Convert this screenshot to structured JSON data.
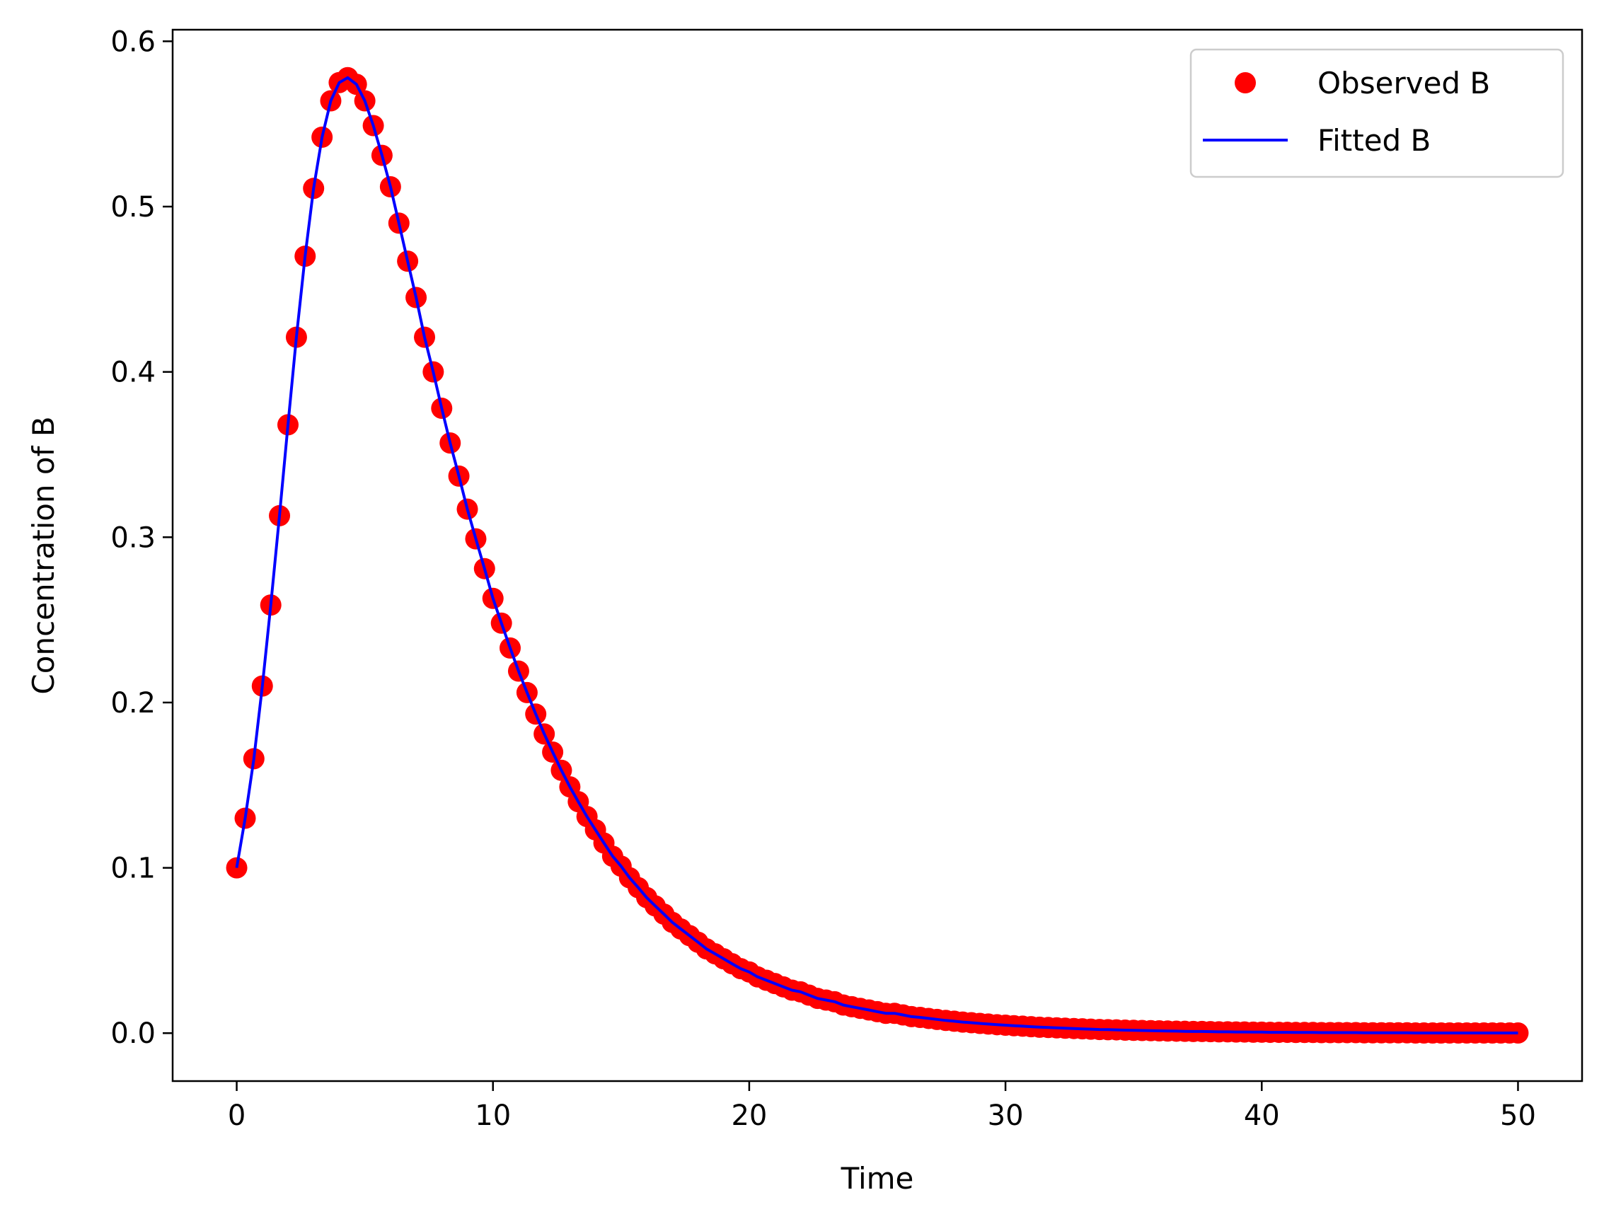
{
  "chart_data": {
    "type": "scatter",
    "title": "",
    "xlabel": "Time",
    "ylabel": "Concentration of B",
    "xlim": [
      -2.5,
      52.5
    ],
    "ylim": [
      -0.029,
      0.607
    ],
    "xticks": [
      0,
      10,
      20,
      30,
      40,
      50
    ],
    "xtick_labels": [
      "0",
      "10",
      "20",
      "30",
      "40",
      "50"
    ],
    "yticks": [
      0.0,
      0.1,
      0.2,
      0.3,
      0.4,
      0.5,
      0.6
    ],
    "ytick_labels": [
      "0.0",
      "0.1",
      "0.2",
      "0.3",
      "0.4",
      "0.5",
      "0.6"
    ],
    "grid": false,
    "legend_position": "top-right",
    "series": [
      {
        "name": "Observed B",
        "kind": "markers",
        "color": "#ff0000",
        "x": [
          0.0,
          0.33,
          0.67,
          1.0,
          1.33,
          1.67,
          2.0,
          2.33,
          2.67,
          3.0,
          3.33,
          3.67,
          4.0,
          4.33,
          4.67,
          5.0,
          5.33,
          5.67,
          6.0,
          6.33,
          6.67,
          7.0,
          7.33,
          7.67,
          8.0,
          8.33,
          8.67,
          9.0,
          9.33,
          9.67,
          10.0,
          10.33,
          10.67,
          11.0,
          11.33,
          11.67,
          12.0,
          12.33,
          12.67,
          13.0,
          13.33,
          13.67,
          14.0,
          14.33,
          14.67,
          15.0,
          15.33,
          15.67,
          16.0,
          16.33,
          16.67,
          17.0,
          17.33,
          17.67,
          18.0,
          18.33,
          18.67,
          19.0,
          19.33,
          19.67,
          20.0,
          20.33,
          20.67,
          21.0,
          21.33,
          21.67,
          22.0,
          22.33,
          22.67,
          23.0,
          23.33,
          23.67,
          24.0,
          24.33,
          24.67,
          25.0,
          25.33,
          25.67,
          26.0,
          26.33,
          26.67,
          27.0,
          27.33,
          27.67,
          28.0,
          28.33,
          28.67,
          29.0,
          29.33,
          29.67,
          30.0,
          30.33,
          30.67,
          31.0,
          31.33,
          31.67,
          32.0,
          32.33,
          32.67,
          33.0,
          33.33,
          33.67,
          34.0,
          34.33,
          34.67,
          35.0,
          35.33,
          35.67,
          36.0,
          36.33,
          36.67,
          37.0,
          37.33,
          37.67,
          38.0,
          38.33,
          38.67,
          39.0,
          39.33,
          39.67,
          40.0,
          40.33,
          40.67,
          41.0,
          41.33,
          41.67,
          42.0,
          42.33,
          42.67,
          43.0,
          43.33,
          43.67,
          44.0,
          44.33,
          44.67,
          45.0,
          45.33,
          45.67,
          46.0,
          46.33,
          46.67,
          47.0,
          47.33,
          47.67,
          48.0,
          48.33,
          48.67,
          49.0,
          49.33,
          49.67,
          50.0
        ],
        "y": [
          0.1,
          0.13,
          0.166,
          0.21,
          0.259,
          0.313,
          0.368,
          0.421,
          0.47,
          0.511,
          0.542,
          0.564,
          0.575,
          0.578,
          0.574,
          0.564,
          0.549,
          0.531,
          0.512,
          0.49,
          0.467,
          0.445,
          0.421,
          0.4,
          0.378,
          0.357,
          0.337,
          0.317,
          0.299,
          0.281,
          0.263,
          0.248,
          0.233,
          0.219,
          0.206,
          0.193,
          0.181,
          0.17,
          0.159,
          0.149,
          0.14,
          0.131,
          0.123,
          0.115,
          0.107,
          0.101,
          0.094,
          0.088,
          0.082,
          0.077,
          0.072,
          0.067,
          0.063,
          0.059,
          0.055,
          0.051,
          0.048,
          0.045,
          0.042,
          0.039,
          0.037,
          0.034,
          0.032,
          0.03,
          0.028,
          0.026,
          0.025,
          0.023,
          0.021,
          0.02,
          0.019,
          0.017,
          0.016,
          0.015,
          0.014,
          0.013,
          0.012,
          0.012,
          0.011,
          0.01,
          0.0095,
          0.0089,
          0.0083,
          0.0077,
          0.0072,
          0.0067,
          0.0063,
          0.0059,
          0.0055,
          0.0051,
          0.0048,
          0.0045,
          0.0042,
          0.0039,
          0.0036,
          0.0034,
          0.0032,
          0.003,
          0.0028,
          0.0026,
          0.0024,
          0.0022,
          0.0021,
          0.002,
          0.0018,
          0.0017,
          0.0016,
          0.0015,
          0.0014,
          0.0013,
          0.0012,
          0.0011,
          0.001,
          0.001,
          0.0009,
          0.0008,
          0.0008,
          0.0007,
          0.0007,
          0.0006,
          0.0006,
          0.0005,
          0.0005,
          0.0005,
          0.0004,
          0.0004,
          0.0004,
          0.0003,
          0.0003,
          0.0003,
          0.0003,
          0.0003,
          0.0002,
          0.0002,
          0.0002,
          0.0002,
          0.0002,
          0.0002,
          0.0001,
          0.0001,
          0.0001,
          0.0001,
          0.0001,
          0.0001,
          0.0001,
          0.0001,
          0.0001,
          0.0001,
          0.0001,
          0.0001,
          0.0001
        ]
      },
      {
        "name": "Fitted B",
        "kind": "line",
        "color": "#0000ff",
        "x": [
          0.0,
          0.33,
          0.67,
          1.0,
          1.33,
          1.67,
          2.0,
          2.33,
          2.67,
          3.0,
          3.33,
          3.67,
          4.0,
          4.33,
          4.67,
          5.0,
          5.33,
          5.67,
          6.0,
          6.33,
          6.67,
          7.0,
          7.33,
          7.67,
          8.0,
          8.33,
          8.67,
          9.0,
          9.33,
          9.67,
          10.0,
          10.33,
          10.67,
          11.0,
          11.33,
          11.67,
          12.0,
          12.33,
          12.67,
          13.0,
          13.33,
          13.67,
          14.0,
          14.33,
          14.67,
          15.0,
          15.33,
          15.67,
          16.0,
          16.33,
          16.67,
          17.0,
          17.33,
          17.67,
          18.0,
          18.33,
          18.67,
          19.0,
          19.33,
          19.67,
          20.0,
          20.33,
          20.67,
          21.0,
          21.33,
          21.67,
          22.0,
          22.33,
          22.67,
          23.0,
          23.33,
          23.67,
          24.0,
          24.33,
          24.67,
          25.0,
          25.33,
          25.67,
          26.0,
          26.33,
          26.67,
          27.0,
          27.33,
          27.67,
          28.0,
          28.33,
          28.67,
          29.0,
          29.33,
          29.67,
          30.0,
          30.33,
          30.67,
          31.0,
          31.33,
          31.67,
          32.0,
          32.33,
          32.67,
          33.0,
          33.33,
          33.67,
          34.0,
          34.33,
          34.67,
          35.0,
          35.33,
          35.67,
          36.0,
          36.33,
          36.67,
          37.0,
          37.33,
          37.67,
          38.0,
          38.33,
          38.67,
          39.0,
          39.33,
          39.67,
          40.0,
          40.33,
          40.67,
          41.0,
          41.33,
          41.67,
          42.0,
          42.33,
          42.67,
          43.0,
          43.33,
          43.67,
          44.0,
          44.33,
          44.67,
          45.0,
          45.33,
          45.67,
          46.0,
          46.33,
          46.67,
          47.0,
          47.33,
          47.67,
          48.0,
          48.33,
          48.67,
          49.0,
          49.33,
          49.67,
          50.0
        ],
        "y": [
          0.1,
          0.13,
          0.166,
          0.21,
          0.259,
          0.313,
          0.368,
          0.421,
          0.47,
          0.511,
          0.542,
          0.564,
          0.575,
          0.578,
          0.574,
          0.564,
          0.549,
          0.531,
          0.512,
          0.49,
          0.467,
          0.445,
          0.421,
          0.4,
          0.378,
          0.357,
          0.337,
          0.317,
          0.299,
          0.281,
          0.263,
          0.248,
          0.233,
          0.219,
          0.206,
          0.193,
          0.181,
          0.17,
          0.159,
          0.149,
          0.14,
          0.131,
          0.123,
          0.115,
          0.107,
          0.101,
          0.094,
          0.088,
          0.082,
          0.077,
          0.072,
          0.067,
          0.063,
          0.059,
          0.055,
          0.051,
          0.048,
          0.045,
          0.042,
          0.039,
          0.037,
          0.034,
          0.032,
          0.03,
          0.028,
          0.026,
          0.025,
          0.023,
          0.021,
          0.02,
          0.019,
          0.017,
          0.016,
          0.015,
          0.014,
          0.013,
          0.012,
          0.012,
          0.011,
          0.01,
          0.0095,
          0.0089,
          0.0083,
          0.0077,
          0.0072,
          0.0067,
          0.0063,
          0.0059,
          0.0055,
          0.0051,
          0.0048,
          0.0045,
          0.0042,
          0.0039,
          0.0036,
          0.0034,
          0.0032,
          0.003,
          0.0028,
          0.0026,
          0.0024,
          0.0022,
          0.0021,
          0.002,
          0.0018,
          0.0017,
          0.0016,
          0.0015,
          0.0014,
          0.0013,
          0.0012,
          0.0011,
          0.001,
          0.001,
          0.0009,
          0.0008,
          0.0008,
          0.0007,
          0.0007,
          0.0006,
          0.0006,
          0.0005,
          0.0005,
          0.0005,
          0.0004,
          0.0004,
          0.0004,
          0.0003,
          0.0003,
          0.0003,
          0.0003,
          0.0003,
          0.0002,
          0.0002,
          0.0002,
          0.0002,
          0.0002,
          0.0002,
          0.0001,
          0.0001,
          0.0001,
          0.0001,
          0.0001,
          0.0001,
          0.0001,
          0.0001,
          0.0001,
          0.0001,
          0.0001,
          0.0001,
          0.0001
        ]
      }
    ]
  }
}
